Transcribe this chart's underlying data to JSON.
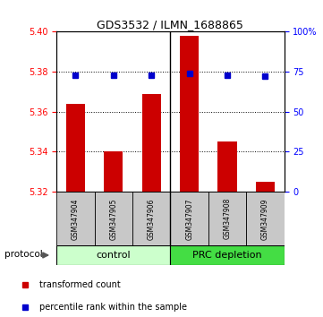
{
  "title": "GDS3532 / ILMN_1688865",
  "samples": [
    "GSM347904",
    "GSM347905",
    "GSM347906",
    "GSM347907",
    "GSM347908",
    "GSM347909"
  ],
  "red_values": [
    5.364,
    5.34,
    5.369,
    5.398,
    5.345,
    5.325
  ],
  "blue_percentiles": [
    73,
    73,
    73,
    74,
    73,
    72
  ],
  "ylim_left": [
    5.32,
    5.4
  ],
  "ylim_right": [
    0,
    100
  ],
  "yticks_left": [
    5.32,
    5.34,
    5.36,
    5.38,
    5.4
  ],
  "yticks_right": [
    0,
    25,
    50,
    75,
    100
  ],
  "ytick_labels_right": [
    "0",
    "25",
    "50",
    "75",
    "100%"
  ],
  "groups": [
    "control",
    "PRC depletion"
  ],
  "bar_color": "#CC0000",
  "dot_color": "#0000CC",
  "bg_group_control": "#ccffcc",
  "bg_group_prc": "#44dd44",
  "protocol_label": "protocol",
  "legend_red": "transformed count",
  "legend_blue": "percentile rank within the sample",
  "bar_width": 0.5,
  "dot_size": 5,
  "title_fontsize": 9,
  "tick_fontsize": 7,
  "label_fontsize": 7,
  "group_fontsize": 8,
  "sample_fontsize": 5.5
}
